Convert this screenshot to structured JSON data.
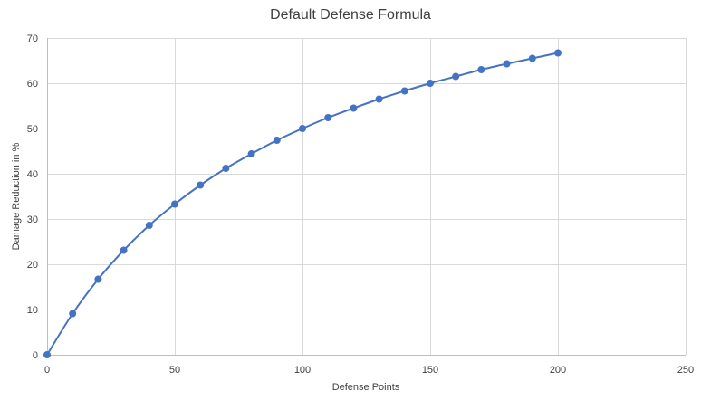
{
  "chart_data": {
    "type": "line",
    "title": "Default Defense Formula",
    "xlabel": "Defense Points",
    "ylabel": "Damage Reduction in %",
    "xlim": [
      0,
      250
    ],
    "ylim": [
      0,
      70
    ],
    "xticks": [
      0,
      50,
      100,
      150,
      200,
      250
    ],
    "yticks": [
      0,
      10,
      20,
      30,
      40,
      50,
      60,
      70
    ],
    "grid": true,
    "legend": "none",
    "series": [
      {
        "color": "#4472c4",
        "marker": "circle",
        "x": [
          0,
          10,
          20,
          30,
          40,
          50,
          60,
          70,
          80,
          90,
          100,
          110,
          120,
          130,
          140,
          150,
          160,
          170,
          180,
          190,
          200
        ],
        "y": [
          0,
          9.1,
          16.7,
          23.1,
          28.6,
          33.3,
          37.5,
          41.2,
          44.4,
          47.4,
          50.0,
          52.4,
          54.5,
          56.5,
          58.3,
          60.0,
          61.5,
          63.0,
          64.3,
          65.5,
          66.7
        ]
      }
    ]
  }
}
